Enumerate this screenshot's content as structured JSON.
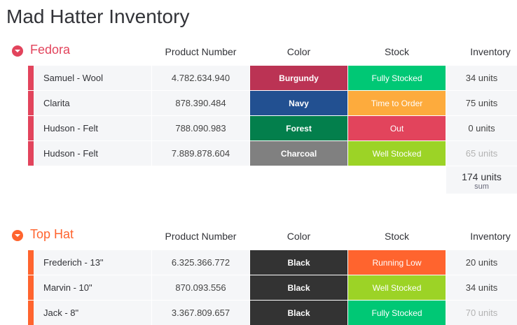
{
  "page_title": "Mad Hatter Inventory",
  "columns": {
    "product_number": "Product Number",
    "color": "Color",
    "stock": "Stock",
    "inventory": "Inventory"
  },
  "groups": [
    {
      "title": "Fedora",
      "accent": "#e2445c",
      "rows": [
        {
          "name": "Samuel - Wool",
          "number": "4.782.634.940",
          "color": "Burgundy",
          "color_hex": "#bb3354",
          "stock": "Fully Stocked",
          "stock_hex": "#00c875",
          "inventory": "34 units"
        },
        {
          "name": "Clarita",
          "number": "878.390.484",
          "color": "Navy",
          "color_hex": "#225091",
          "stock": "Time to Order",
          "stock_hex": "#fdab3d",
          "inventory": "75 units"
        },
        {
          "name": "Hudson - Felt",
          "number": "788.090.983",
          "color": "Forest",
          "color_hex": "#037f4c",
          "stock": "Out",
          "stock_hex": "#e2445c",
          "inventory": "0 units"
        },
        {
          "name": "Hudson - Felt",
          "number": "7.889.878.604",
          "color": "Charcoal",
          "color_hex": "#808080",
          "stock": "Well Stocked",
          "stock_hex": "#9cd326",
          "inventory": "65 units"
        }
      ],
      "summary": {
        "value": "174 units",
        "label": "sum"
      }
    },
    {
      "title": "Top Hat",
      "accent": "#ff642e",
      "rows": [
        {
          "name": "Frederich - 13\"",
          "number": "6.325.366.772",
          "color": "Black",
          "color_hex": "#333333",
          "stock": "Running Low",
          "stock_hex": "#ff642e",
          "inventory": "20 units"
        },
        {
          "name": "Marvin - 10\"",
          "number": "870.093.556",
          "color": "Black",
          "color_hex": "#333333",
          "stock": "Well Stocked",
          "stock_hex": "#9cd326",
          "inventory": "34 units"
        },
        {
          "name": "Jack - 8\"",
          "number": "3.367.809.657",
          "color": "Black",
          "color_hex": "#333333",
          "stock": "Fully Stocked",
          "stock_hex": "#00c875",
          "inventory": "70 units"
        }
      ]
    }
  ]
}
